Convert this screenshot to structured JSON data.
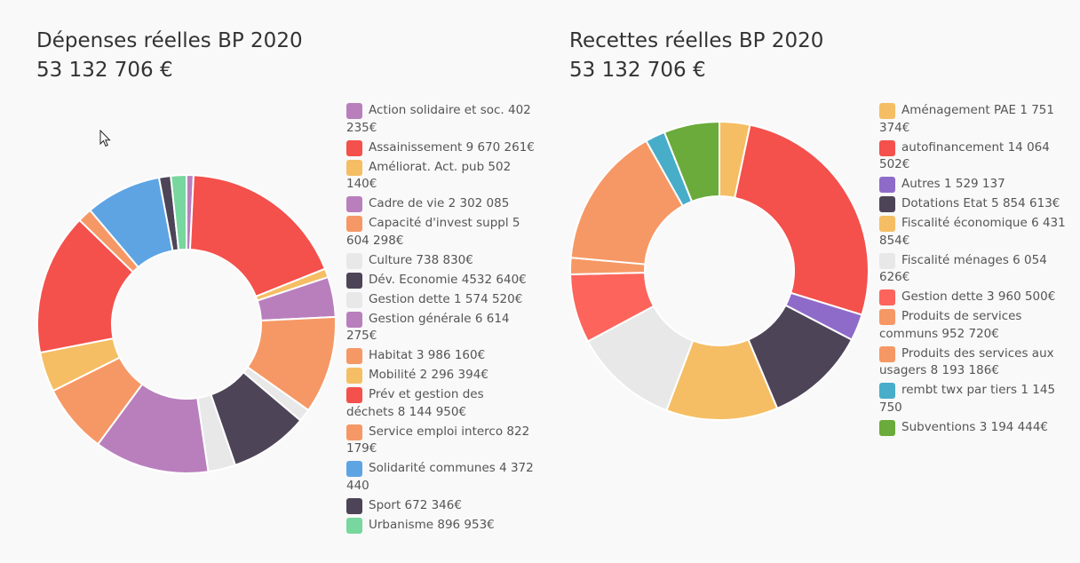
{
  "cursor_icon": "mouse-pointer-icon",
  "left": {
    "title": "Dépenses réelles BP 2020",
    "total": "53 132 706 €"
  },
  "right": {
    "title": "Recettes réelles BP 2020",
    "total": "53 132 706 €"
  },
  "chart_data": [
    {
      "type": "pie",
      "title": "Dépenses réelles BP 2020",
      "subtitle": "53 132 706 €",
      "donut": true,
      "legend": "right",
      "slices": [
        {
          "label": "Action solidaire et soc. 402 235€",
          "value": 402235,
          "color": "#b97fbd"
        },
        {
          "label": "Assainissement 9 670 261€",
          "value": 9670261,
          "color": "#f4504c"
        },
        {
          "label": "Améliorat. Act. pub 502 140€",
          "value": 502140,
          "color": "#f5be64"
        },
        {
          "label": "Cadre de vie 2 302 085",
          "value": 2302085,
          "color": "#b97fbd"
        },
        {
          "label": "Capacité d'invest suppl 5 604 298€",
          "value": 5604298,
          "color": "#f69865"
        },
        {
          "label": "Culture 738 830€",
          "value": 738830,
          "color": "#e8e8e8"
        },
        {
          "label": "Dév. Economie 4532 640€",
          "value": 4532640,
          "color": "#4e4458"
        },
        {
          "label": "Gestion dette 1 574 520€",
          "value": 1574520,
          "color": "#e8e8e8"
        },
        {
          "label": "Gestion générale 6 614 275€",
          "value": 6614275,
          "color": "#b97fbd"
        },
        {
          "label": "Habitat 3 986 160€",
          "value": 3986160,
          "color": "#f69865"
        },
        {
          "label": "Mobilité 2 296 394€",
          "value": 2296394,
          "color": "#f5be64"
        },
        {
          "label": "Prév et gestion des déchets 8 144 950€",
          "value": 8144950,
          "color": "#f4504c"
        },
        {
          "label": "Service emploi interco 822 179€",
          "value": 822179,
          "color": "#f69865"
        },
        {
          "label": "Solidarité communes 4 372 440",
          "value": 4372440,
          "color": "#5ea4e3"
        },
        {
          "label": "Sport 672 346€",
          "value": 672346,
          "color": "#4e4458"
        },
        {
          "label": "Urbanisme 896 953€",
          "value": 896953,
          "color": "#77d79e"
        }
      ]
    },
    {
      "type": "pie",
      "title": "Recettes réelles BP 2020",
      "subtitle": "53 132 706 €",
      "donut": true,
      "legend": "right",
      "slices": [
        {
          "label": "Aménagement PAE 1 751 374€",
          "value": 1751374,
          "color": "#f5be64"
        },
        {
          "label": "autofinancement 14 064 502€",
          "value": 14064502,
          "color": "#f4504c"
        },
        {
          "label": "Autres 1 529 137",
          "value": 1529137,
          "color": "#8e6bc9"
        },
        {
          "label": "Dotations Etat 5 854 613€",
          "value": 5854613,
          "color": "#4e4458"
        },
        {
          "label": "Fiscalité économique 6 431 854€",
          "value": 6431854,
          "color": "#f5be64"
        },
        {
          "label": "Fiscalité ménages 6 054 626€",
          "value": 6054626,
          "color": "#e8e8e8"
        },
        {
          "label": "Gestion dette 3 960 500€",
          "value": 3960500,
          "color": "#fc645c"
        },
        {
          "label": "Produits de services communs 952 720€",
          "value": 952720,
          "color": "#f69865"
        },
        {
          "label": "Produits des services aux usagers 8 193 186€",
          "value": 8193186,
          "color": "#f69865"
        },
        {
          "label": "rembt twx par tiers 1 145 750",
          "value": 1145750,
          "color": "#48adc9"
        },
        {
          "label": "Subventions 3 194 444€",
          "value": 3194444,
          "color": "#6aab3b"
        }
      ]
    }
  ]
}
